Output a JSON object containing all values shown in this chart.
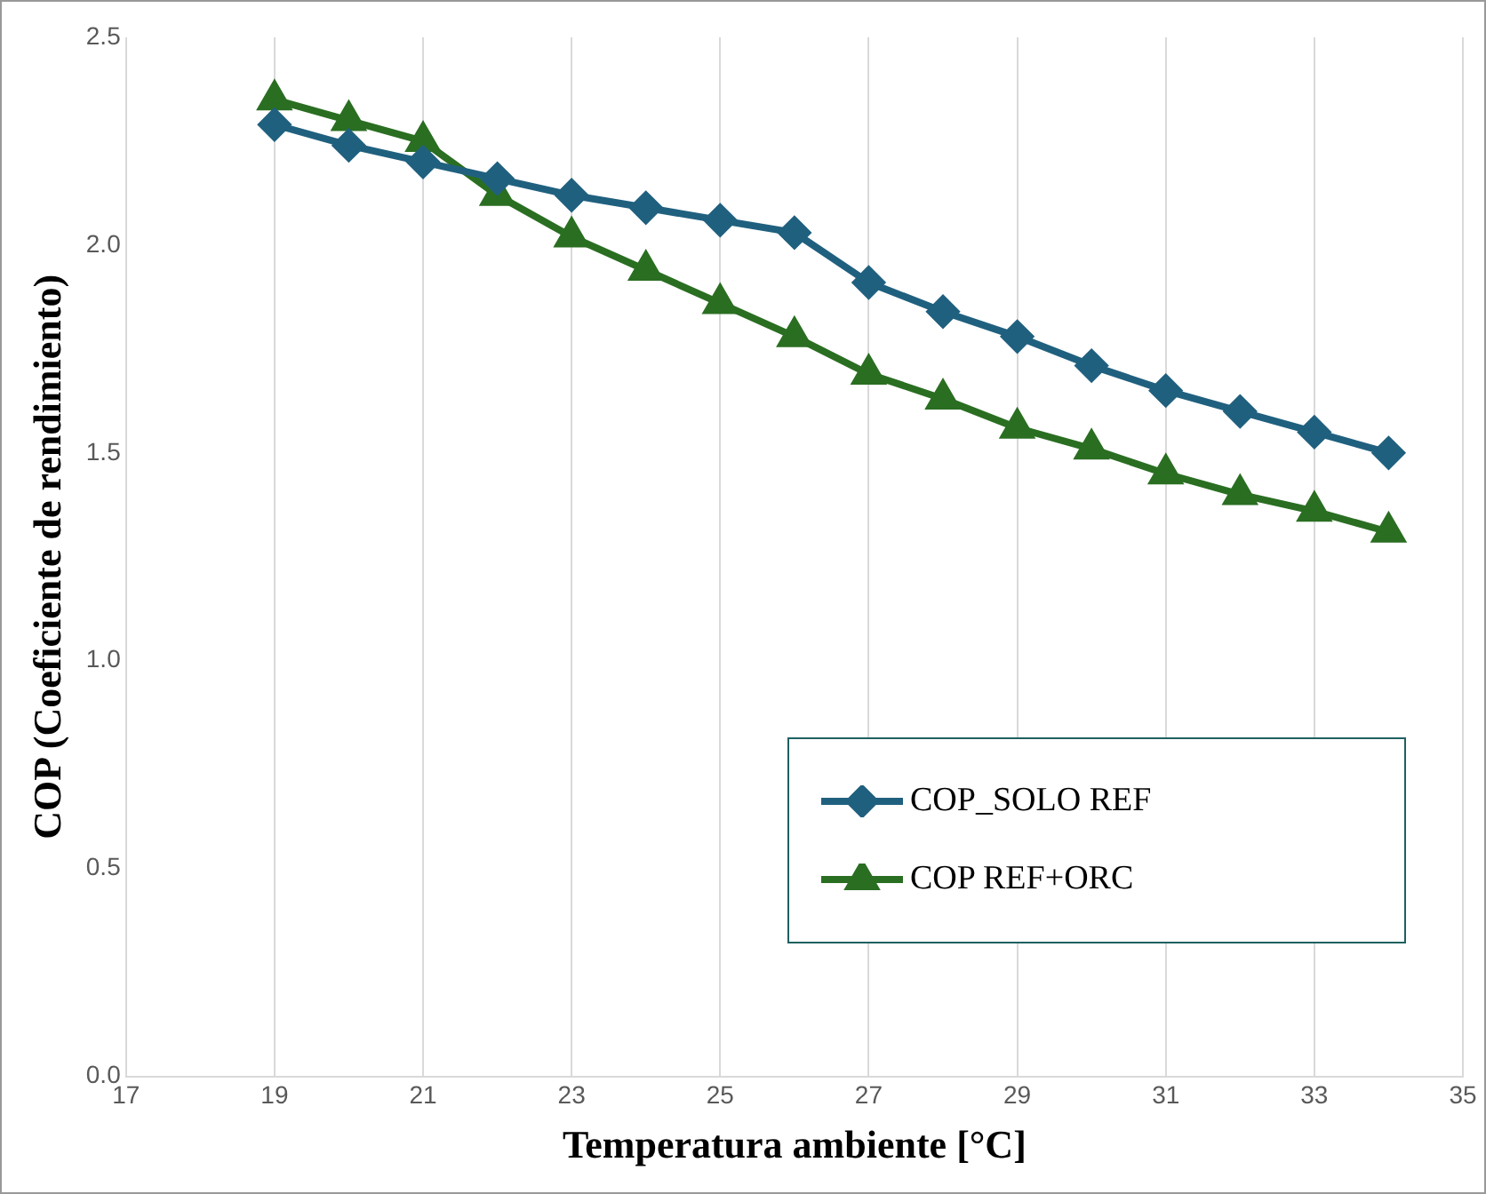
{
  "chart_data": {
    "type": "line",
    "xlabel": "Temperatura ambiente [°C]",
    "ylabel": "COP (Coeficiente de rendimiento)",
    "x": [
      19,
      20,
      21,
      22,
      23,
      24,
      25,
      26,
      27,
      28,
      29,
      30,
      31,
      32,
      33,
      34
    ],
    "series": [
      {
        "name": "COP_SOLO REF",
        "color": "#20607f",
        "marker": "diamond",
        "values": [
          2.29,
          2.24,
          2.2,
          2.16,
          2.12,
          2.09,
          2.06,
          2.03,
          1.91,
          1.84,
          1.78,
          1.71,
          1.65,
          1.6,
          1.55,
          1.5
        ]
      },
      {
        "name": "COP REF+ORC",
        "color": "#2a6e22",
        "marker": "triangle",
        "values": [
          2.35,
          2.3,
          2.25,
          2.12,
          2.02,
          1.94,
          1.86,
          1.78,
          1.69,
          1.63,
          1.56,
          1.51,
          1.45,
          1.4,
          1.36,
          1.31
        ]
      }
    ],
    "xlim": [
      17,
      35
    ],
    "xticks": [
      17,
      19,
      21,
      23,
      25,
      27,
      29,
      31,
      33,
      35
    ],
    "ylim": [
      0,
      2.5
    ],
    "yticks": [
      {
        "value": 0,
        "label": "0.0"
      },
      {
        "value": 0.5,
        "label": "0.5"
      },
      {
        "value": 1,
        "label": "1.0"
      },
      {
        "value": 1.5,
        "label": "1.5"
      },
      {
        "value": 2,
        "label": "2.0"
      },
      {
        "value": 2.5,
        "label": "2.5"
      }
    ],
    "grid": "x",
    "legend": "bottom right",
    "line_style": "solid"
  }
}
